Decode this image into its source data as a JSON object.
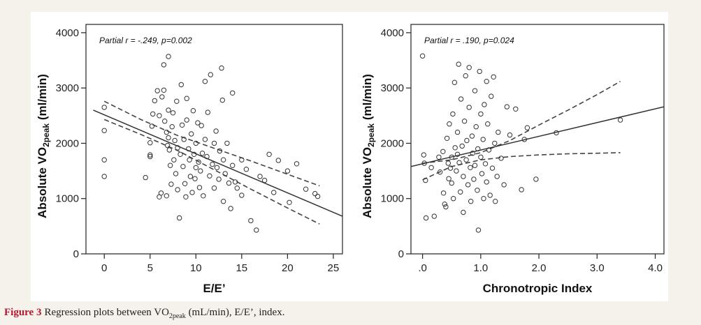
{
  "chart_data": [
    {
      "type": "scatter",
      "annotation": "Partial r = -.249, p=0.002",
      "xlabel": "E/E’",
      "ylabel": {
        "prefix": "Absolute VO",
        "sub": "2peak",
        "suffix": " (ml/min)"
      },
      "xlim": [
        -2,
        26
      ],
      "ylim": [
        0,
        4150
      ],
      "xticks": [
        0,
        5,
        10,
        15,
        20,
        25
      ],
      "xtick_labels": [
        "0",
        "5",
        "10",
        "15",
        "20",
        "25"
      ],
      "yticks": [
        0,
        1000,
        2000,
        3000,
        4000
      ],
      "ytick_labels": [
        "0",
        "1000",
        "2000",
        "3000",
        "4000"
      ],
      "grid": false,
      "fit_line": {
        "x": [
          -1.2,
          26
        ],
        "y": [
          2600,
          680
        ]
      },
      "ci_upper": {
        "x": [
          0,
          4,
          8,
          12,
          16,
          20,
          23.5
        ],
        "y": [
          2760,
          2430,
          2140,
          1910,
          1680,
          1440,
          1230
        ]
      },
      "ci_lower": {
        "x": [
          0,
          4,
          8,
          12,
          16,
          20,
          23.5
        ],
        "y": [
          2430,
          2160,
          1870,
          1520,
          1170,
          830,
          540
        ]
      },
      "points": [
        [
          0,
          2650
        ],
        [
          0,
          2230
        ],
        [
          0,
          1700
        ],
        [
          0,
          1400
        ],
        [
          4.5,
          1380
        ],
        [
          5,
          1790
        ],
        [
          5,
          1760
        ],
        [
          5,
          2010
        ],
        [
          5.2,
          2310
        ],
        [
          5.3,
          2530
        ],
        [
          5.5,
          2770
        ],
        [
          5.8,
          2950
        ],
        [
          6,
          2500
        ],
        [
          6,
          1030
        ],
        [
          6.2,
          1100
        ],
        [
          6.3,
          2840
        ],
        [
          6.5,
          3420
        ],
        [
          6.5,
          2960
        ],
        [
          6.6,
          2400
        ],
        [
          6.8,
          2200
        ],
        [
          6.8,
          1050
        ],
        [
          6.9,
          1960
        ],
        [
          7,
          3570
        ],
        [
          7,
          2600
        ],
        [
          7,
          2100
        ],
        [
          7.1,
          1880
        ],
        [
          7.2,
          1600
        ],
        [
          7.3,
          1260
        ],
        [
          7.4,
          2300
        ],
        [
          7.5,
          2550
        ],
        [
          7.6,
          1700
        ],
        [
          7.7,
          2050
        ],
        [
          7.8,
          1450
        ],
        [
          7.9,
          2760
        ],
        [
          8,
          1920
        ],
        [
          8,
          1160
        ],
        [
          8.2,
          650
        ],
        [
          8.3,
          1800
        ],
        [
          8.4,
          3060
        ],
        [
          8.5,
          2330
        ],
        [
          8.6,
          1580
        ],
        [
          8.7,
          2070
        ],
        [
          8.8,
          1270
        ],
        [
          8.9,
          1030
        ],
        [
          9,
          2810
        ],
        [
          9,
          2420
        ],
        [
          9.2,
          1900
        ],
        [
          9.3,
          1700
        ],
        [
          9.4,
          1400
        ],
        [
          9.5,
          2170
        ],
        [
          9.6,
          1110
        ],
        [
          9.7,
          2590
        ],
        [
          9.8,
          1800
        ],
        [
          9.9,
          1360
        ],
        [
          10,
          2000
        ],
        [
          10,
          1560
        ],
        [
          10.2,
          2370
        ],
        [
          10.3,
          1660
        ],
        [
          10.4,
          1200
        ],
        [
          10.5,
          1500
        ],
        [
          10.6,
          2320
        ],
        [
          10.7,
          1820
        ],
        [
          10.8,
          1050
        ],
        [
          11,
          3120
        ],
        [
          11,
          2070
        ],
        [
          11.2,
          1760
        ],
        [
          11.3,
          2560
        ],
        [
          11.5,
          1410
        ],
        [
          11.6,
          3240
        ],
        [
          11.8,
          1620
        ],
        [
          12,
          2000
        ],
        [
          12,
          1190
        ],
        [
          12.2,
          2220
        ],
        [
          12.3,
          1560
        ],
        [
          12.5,
          1350
        ],
        [
          12.6,
          1860
        ],
        [
          12.8,
          3360
        ],
        [
          12.9,
          2780
        ],
        [
          13,
          1700
        ],
        [
          13,
          950
        ],
        [
          13.2,
          1450
        ],
        [
          13.4,
          2000
        ],
        [
          13.6,
          1280
        ],
        [
          13.8,
          820
        ],
        [
          14,
          2910
        ],
        [
          14,
          1600
        ],
        [
          14.3,
          1300
        ],
        [
          14.5,
          1190
        ],
        [
          15,
          1700
        ],
        [
          15,
          1060
        ],
        [
          15.5,
          1530
        ],
        [
          16,
          600
        ],
        [
          16.6,
          430
        ],
        [
          17,
          1400
        ],
        [
          17.5,
          1330
        ],
        [
          18,
          1800
        ],
        [
          18.5,
          1110
        ],
        [
          19,
          1690
        ],
        [
          20,
          1500
        ],
        [
          20.2,
          930
        ],
        [
          21,
          1630
        ],
        [
          22,
          1170
        ],
        [
          23,
          1090
        ],
        [
          23.3,
          1040
        ]
      ]
    },
    {
      "type": "scatter",
      "annotation": "Partial r = .190, p=0.024",
      "xlabel": "Chronotropic Index",
      "ylabel": {
        "prefix": "Absolute VO",
        "sub": "2peak",
        "suffix": " (ml/min)"
      },
      "xlim": [
        -0.2,
        4.15
      ],
      "ylim": [
        0,
        4150
      ],
      "xticks": [
        0,
        1,
        2,
        3,
        4
      ],
      "xtick_labels": [
        ".0",
        "1.0",
        "2.0",
        "3.0",
        "4.0"
      ],
      "yticks": [
        0,
        1000,
        2000,
        3000,
        4000
      ],
      "ytick_labels": [
        "0",
        "1000",
        "2000",
        "3000",
        "4000"
      ],
      "grid": false,
      "fit_line": {
        "x": [
          -0.2,
          4.15
        ],
        "y": [
          1580,
          2660
        ]
      },
      "ci_upper": {
        "x": [
          0,
          0.5,
          1,
          1.5,
          2,
          2.5,
          3,
          3.4
        ],
        "y": [
          1640,
          1700,
          1830,
          2050,
          2330,
          2600,
          2880,
          3120
        ]
      },
      "ci_lower": {
        "x": [
          0,
          0.5,
          1,
          1.5,
          2,
          2.5,
          3,
          3.4
        ],
        "y": [
          1340,
          1580,
          1700,
          1760,
          1790,
          1810,
          1820,
          1830
        ]
      },
      "points": [
        [
          0,
          3580
        ],
        [
          0.02,
          1790
        ],
        [
          0.03,
          1640
        ],
        [
          0.05,
          1330
        ],
        [
          0.06,
          650
        ],
        [
          0.15,
          1560
        ],
        [
          0.2,
          680
        ],
        [
          0.28,
          1750
        ],
        [
          0.3,
          1480
        ],
        [
          0.35,
          1850
        ],
        [
          0.36,
          1100
        ],
        [
          0.38,
          900
        ],
        [
          0.4,
          850
        ],
        [
          0.42,
          2090
        ],
        [
          0.44,
          1640
        ],
        [
          0.45,
          1360
        ],
        [
          0.46,
          2350
        ],
        [
          0.48,
          1550
        ],
        [
          0.5,
          1750
        ],
        [
          0.5,
          1280
        ],
        [
          0.52,
          2530
        ],
        [
          0.53,
          1000
        ],
        [
          0.55,
          3100
        ],
        [
          0.56,
          1920
        ],
        [
          0.58,
          1500
        ],
        [
          0.6,
          2200
        ],
        [
          0.6,
          1800
        ],
        [
          0.62,
          3430
        ],
        [
          0.63,
          1650
        ],
        [
          0.65,
          1120
        ],
        [
          0.66,
          2800
        ],
        [
          0.68,
          1950
        ],
        [
          0.7,
          1400
        ],
        [
          0.7,
          750
        ],
        [
          0.72,
          2400
        ],
        [
          0.74,
          3220
        ],
        [
          0.75,
          1700
        ],
        [
          0.76,
          2050
        ],
        [
          0.78,
          1250
        ],
        [
          0.8,
          3370
        ],
        [
          0.8,
          2650
        ],
        [
          0.82,
          1560
        ],
        [
          0.83,
          950
        ],
        [
          0.85,
          2130
        ],
        [
          0.86,
          1820
        ],
        [
          0.88,
          1350
        ],
        [
          0.9,
          2950
        ],
        [
          0.9,
          1600
        ],
        [
          0.92,
          2300
        ],
        [
          0.94,
          1150
        ],
        [
          0.95,
          1900
        ],
        [
          0.96,
          430
        ],
        [
          0.98,
          3300
        ],
        [
          1,
          2530
        ],
        [
          1,
          1750
        ],
        [
          1.02,
          1450
        ],
        [
          1.04,
          2070
        ],
        [
          1.05,
          1000
        ],
        [
          1.06,
          2700
        ],
        [
          1.08,
          1630
        ],
        [
          1.1,
          3120
        ],
        [
          1.1,
          1300
        ],
        [
          1.12,
          2350
        ],
        [
          1.14,
          1880
        ],
        [
          1.16,
          1060
        ],
        [
          1.18,
          2850
        ],
        [
          1.2,
          1550
        ],
        [
          1.22,
          3200
        ],
        [
          1.24,
          2000
        ],
        [
          1.25,
          950
        ],
        [
          1.28,
          1400
        ],
        [
          1.3,
          2200
        ],
        [
          1.35,
          1730
        ],
        [
          1.4,
          1250
        ],
        [
          1.45,
          2660
        ],
        [
          1.5,
          2150
        ],
        [
          1.6,
          2620
        ],
        [
          1.7,
          1160
        ],
        [
          1.75,
          2070
        ],
        [
          1.8,
          2280
        ],
        [
          1.95,
          1350
        ],
        [
          2.3,
          2190
        ],
        [
          3.4,
          2420
        ]
      ]
    }
  ],
  "caption": {
    "label": "Figure 3",
    "text_before": "Regression plots between VO",
    "sub": "2peak",
    "text_after": " (mL/min), E/E’, index."
  }
}
